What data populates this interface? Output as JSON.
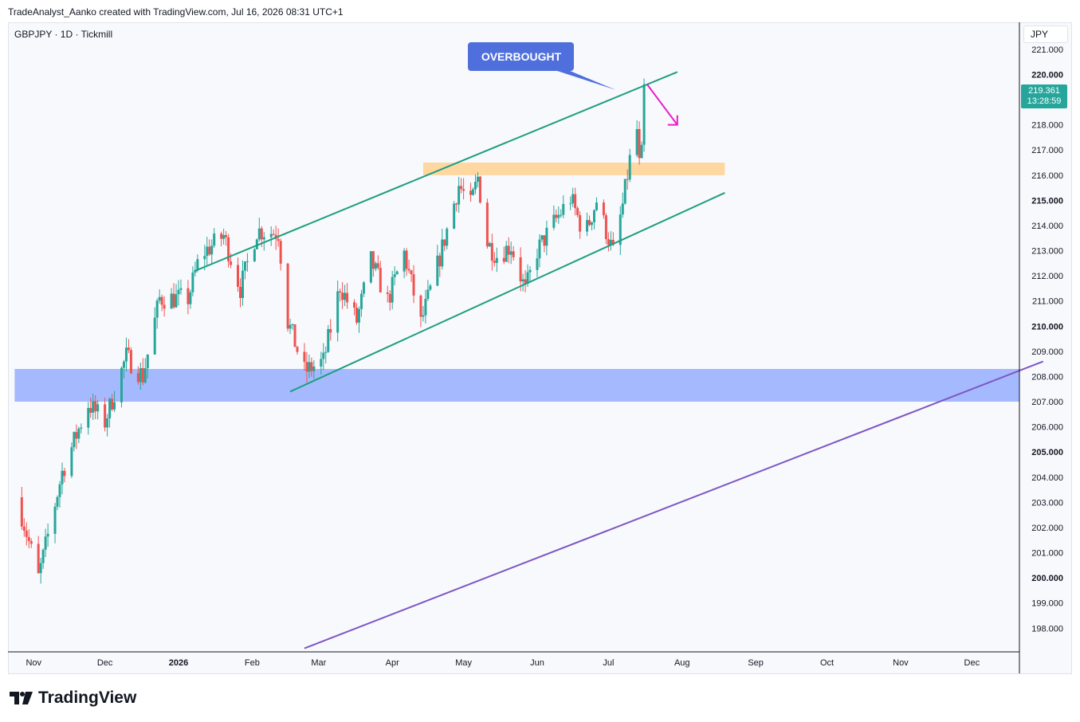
{
  "header": {
    "attribution": "TradeAnalyst_Aanko created with TradingView.com, Jul 16, 2026 08:31 UTC+1"
  },
  "symbol": {
    "label": "GBPJPY · 1D · Tickmill"
  },
  "axis": {
    "currency": "JPY"
  },
  "last_price": {
    "value": "219.361",
    "countdown": "13:28:59"
  },
  "annotation": {
    "text": "OVERBOUGHT"
  },
  "footer": {
    "brand": "TradingView"
  },
  "colors": {
    "up": "#26a69a",
    "down": "#ef5350",
    "channel": "#1e9e80",
    "trendline": "#7e57c2",
    "support_zone": "#a5b9ff",
    "resistance_zone": "#ffd7a0",
    "arrow": "#e91ec8",
    "callout": "#4f6fdc"
  },
  "chart_data": {
    "type": "candlestick",
    "title": "GBPJPY · 1D · Tickmill",
    "y_axis": {
      "ticks": [
        "221.000",
        "220.000",
        "219.000",
        "218.000",
        "217.000",
        "216.000",
        "215.000",
        "214.000",
        "213.000",
        "212.000",
        "211.000",
        "210.000",
        "209.000",
        "208.000",
        "207.000",
        "206.000",
        "205.000",
        "204.000",
        "203.000",
        "202.000",
        "201.000",
        "200.000",
        "199.000",
        "198.000"
      ],
      "bold_ticks": [
        "220.000",
        "215.000",
        "210.000",
        "205.000",
        "200.000"
      ],
      "range": [
        197.3,
        221.3
      ]
    },
    "x_axis": {
      "ticks": [
        "Nov",
        "Dec",
        "2026",
        "Feb",
        "Mar",
        "Apr",
        "May",
        "Jun",
        "Jul",
        "Aug",
        "Sep",
        "Oct",
        "Nov",
        "Dec"
      ],
      "bold_ticks": [
        "2026"
      ]
    },
    "zones": [
      {
        "name": "support",
        "from": 207.0,
        "to": 208.3,
        "start": "2025-10-24",
        "end": "2026-12-31"
      },
      {
        "name": "resistance",
        "from": 216.0,
        "to": 216.5,
        "start": "2026-04-14",
        "end": "2026-08-19"
      }
    ],
    "trendlines": [
      {
        "name": "channel-upper",
        "from": [
          "2026-01-08",
          212.2
        ],
        "to": [
          "2026-07-30",
          220.1
        ]
      },
      {
        "name": "channel-lower",
        "from": [
          "2026-02-17",
          207.4
        ],
        "to": [
          "2026-08-19",
          215.3
        ]
      },
      {
        "name": "long-term",
        "from": [
          "2026-02-23",
          197.2
        ],
        "to": [
          "2026-12-31",
          208.6
        ]
      }
    ],
    "projection_arrow": {
      "from": [
        "2026-07-16",
        219.6
      ],
      "to": [
        "2026-07-30",
        218.0
      ]
    },
    "annotation": {
      "text": "OVERBOUGHT",
      "date": "2026-07-13",
      "price": 219.6
    },
    "anchors": [
      [
        "2025-10-25",
        203.2
      ],
      [
        "2025-11-03",
        200.0
      ],
      [
        "2025-11-13",
        204.2
      ],
      [
        "2025-11-24",
        206.9
      ],
      [
        "2025-12-01",
        206.2
      ],
      [
        "2025-12-10",
        208.8
      ],
      [
        "2025-12-17",
        208.0
      ],
      [
        "2025-12-24",
        211.1
      ],
      [
        "2026-01-05",
        211.1
      ],
      [
        "2026-01-10",
        212.8
      ],
      [
        "2026-01-20",
        213.6
      ],
      [
        "2026-01-27",
        211.5
      ],
      [
        "2026-02-03",
        213.8
      ],
      [
        "2026-02-12",
        213.7
      ],
      [
        "2026-02-16",
        210.2
      ],
      [
        "2026-02-23",
        208.2
      ],
      [
        "2026-03-03",
        208.6
      ],
      [
        "2026-03-10",
        211.6
      ],
      [
        "2026-03-17",
        210.2
      ],
      [
        "2026-03-23",
        212.6
      ],
      [
        "2026-03-30",
        211.0
      ],
      [
        "2026-04-06",
        212.9
      ],
      [
        "2026-04-13",
        210.1
      ],
      [
        "2026-04-20",
        212.4
      ],
      [
        "2026-04-29",
        215.6
      ],
      [
        "2026-05-04",
        214.8
      ],
      [
        "2026-05-07",
        215.9
      ],
      [
        "2026-05-11",
        213.3
      ],
      [
        "2026-05-15",
        212.8
      ],
      [
        "2026-05-21",
        213.2
      ],
      [
        "2026-05-27",
        211.4
      ],
      [
        "2026-06-01",
        213.0
      ],
      [
        "2026-06-08",
        214.1
      ],
      [
        "2026-06-15",
        215.1
      ],
      [
        "2026-06-21",
        213.6
      ],
      [
        "2026-06-26",
        215.0
      ],
      [
        "2026-07-03",
        212.9
      ],
      [
        "2026-07-07",
        214.8
      ],
      [
        "2026-07-10",
        216.6
      ],
      [
        "2026-07-13",
        217.8
      ],
      [
        "2026-07-14",
        216.4
      ],
      [
        "2026-07-15",
        216.8
      ],
      [
        "2026-07-16",
        219.4
      ]
    ]
  }
}
